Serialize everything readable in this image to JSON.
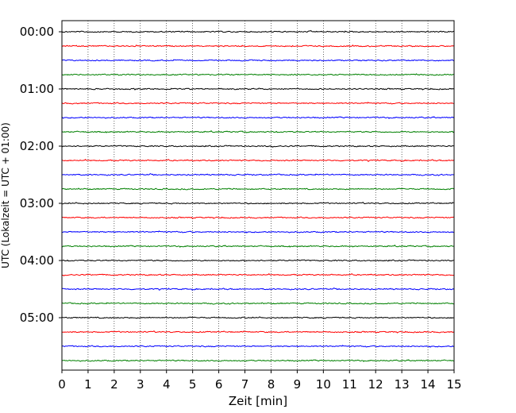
{
  "chart_data": {
    "type": "line",
    "title": "",
    "xlabel": "Zeit  [min]",
    "ylabel": "UTC (Lokalzeit = UTC + 01:00)",
    "xlim": [
      0,
      15
    ],
    "x_ticks": [
      "0",
      "1",
      "2",
      "3",
      "4",
      "5",
      "6",
      "7",
      "8",
      "9",
      "10",
      "11",
      "12",
      "13",
      "14",
      "15"
    ],
    "y_tick_labels": [
      "00:00",
      "01:00",
      "02:00",
      "03:00",
      "04:00",
      "05:00"
    ],
    "grid": "vertical-dotted",
    "trace_interval_min": 15,
    "trace_count": 24,
    "trace_colors": [
      "#000000",
      "#ff0000",
      "#0000ff",
      "#008000"
    ]
  }
}
